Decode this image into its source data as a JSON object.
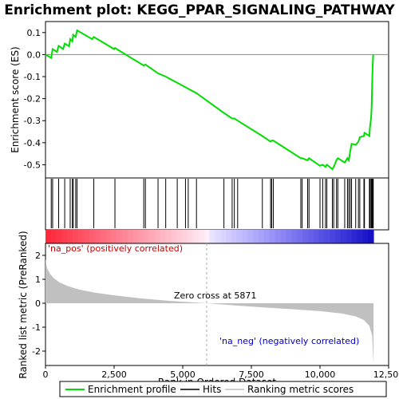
{
  "chart_data": {
    "type": "line",
    "title": "Enrichment plot: KEGG_PPAR_SIGNALING_PATHWAY",
    "es_panel": {
      "ylabel": "Enrichment score (ES)",
      "ylim": [
        -0.56,
        0.15
      ],
      "yticks": [
        "0.1",
        "0.0",
        "-0.1",
        "-0.2",
        "-0.3",
        "-0.4",
        "-0.5"
      ],
      "ytick_values": [
        0.1,
        0.0,
        -0.1,
        -0.2,
        -0.3,
        -0.4,
        -0.5
      ],
      "line_color": "#00dd00",
      "points": [
        [
          0,
          0.0
        ],
        [
          210,
          -0.015
        ],
        [
          260,
          0.025
        ],
        [
          420,
          0.012
        ],
        [
          480,
          0.04
        ],
        [
          640,
          0.025
        ],
        [
          700,
          0.05
        ],
        [
          860,
          0.038
        ],
        [
          900,
          0.07
        ],
        [
          980,
          0.06
        ],
        [
          1010,
          0.09
        ],
        [
          1100,
          0.08
        ],
        [
          1150,
          0.11
        ],
        [
          1700,
          0.07
        ],
        [
          1760,
          0.08
        ],
        [
          2500,
          0.025
        ],
        [
          2530,
          0.03
        ],
        [
          3580,
          -0.05
        ],
        [
          3640,
          -0.045
        ],
        [
          4100,
          -0.085
        ],
        [
          4380,
          -0.1
        ],
        [
          4800,
          -0.128
        ],
        [
          5100,
          -0.148
        ],
        [
          5200,
          -0.155
        ],
        [
          5500,
          -0.175
        ],
        [
          6500,
          -0.265
        ],
        [
          6800,
          -0.29
        ],
        [
          6880,
          -0.29
        ],
        [
          7000,
          -0.3
        ],
        [
          7900,
          -0.37
        ],
        [
          8200,
          -0.395
        ],
        [
          8240,
          -0.39
        ],
        [
          8300,
          -0.39
        ],
        [
          9300,
          -0.47
        ],
        [
          9350,
          -0.47
        ],
        [
          9550,
          -0.48
        ],
        [
          9600,
          -0.47
        ],
        [
          10000,
          -0.505
        ],
        [
          10100,
          -0.5
        ],
        [
          10200,
          -0.51
        ],
        [
          10250,
          -0.5
        ],
        [
          10450,
          -0.52
        ],
        [
          10500,
          -0.51
        ],
        [
          10600,
          -0.48
        ],
        [
          10650,
          -0.47
        ],
        [
          10900,
          -0.49
        ],
        [
          11000,
          -0.47
        ],
        [
          11050,
          -0.48
        ],
        [
          11100,
          -0.44
        ],
        [
          11150,
          -0.405
        ],
        [
          11300,
          -0.41
        ],
        [
          11400,
          -0.395
        ],
        [
          11450,
          -0.375
        ],
        [
          11600,
          -0.37
        ],
        [
          11620,
          -0.355
        ],
        [
          11800,
          -0.37
        ],
        [
          11820,
          -0.33
        ],
        [
          11860,
          -0.29
        ],
        [
          11880,
          -0.24
        ],
        [
          11900,
          -0.13
        ],
        [
          11920,
          -0.05
        ],
        [
          11940,
          0.0
        ]
      ]
    },
    "hits": [
      210,
      260,
      480,
      700,
      900,
      980,
      1010,
      1100,
      1150,
      1760,
      2530,
      3580,
      3640,
      4100,
      4380,
      4800,
      5100,
      5200,
      5500,
      6500,
      6800,
      6880,
      7000,
      7900,
      8200,
      8240,
      8300,
      9300,
      9350,
      9550,
      9600,
      10000,
      10100,
      10200,
      10250,
      10450,
      10500,
      10600,
      10650,
      10900,
      11000,
      11050,
      11100,
      11150,
      11300,
      11400,
      11450,
      11600,
      11620,
      11800,
      11820,
      11860,
      11880,
      11900,
      11920,
      11940
    ],
    "metric_panel": {
      "ylabel": "Ranked list metric (PreRanked)",
      "ylim": [
        -2.6,
        2.5
      ],
      "yticks": [
        "2",
        "1",
        "0",
        "-1",
        "-2"
      ],
      "ytick_values": [
        2,
        1,
        0,
        -1,
        -2
      ],
      "fill_color": "#c0c0c0",
      "zero_cross_label": "Zero cross at 5871",
      "zero_cross": 5871,
      "pos_label": "'na_pos' (positively correlated)",
      "neg_label": "'na_neg' (negatively correlated)",
      "curve": [
        [
          0,
          1.85
        ],
        [
          50,
          1.5
        ],
        [
          150,
          1.25
        ],
        [
          300,
          1.05
        ],
        [
          500,
          0.88
        ],
        [
          800,
          0.72
        ],
        [
          1200,
          0.58
        ],
        [
          1800,
          0.44
        ],
        [
          2500,
          0.33
        ],
        [
          3500,
          0.2
        ],
        [
          4500,
          0.1
        ],
        [
          5871,
          0.0
        ],
        [
          7000,
          -0.1
        ],
        [
          8000,
          -0.18
        ],
        [
          9000,
          -0.25
        ],
        [
          10000,
          -0.33
        ],
        [
          10800,
          -0.43
        ],
        [
          11300,
          -0.55
        ],
        [
          11600,
          -0.7
        ],
        [
          11800,
          -0.95
        ],
        [
          11900,
          -1.35
        ],
        [
          11950,
          -2.6
        ]
      ]
    },
    "xlabel": "Rank in Ordered Dataset",
    "xlim": [
      0,
      12500
    ],
    "xticks": [
      "0",
      "2,500",
      "5,000",
      "7,500",
      "10,000",
      "12,500"
    ],
    "xtick_values": [
      0,
      2500,
      5000,
      7500,
      10000,
      12500
    ],
    "n_genes": 11950,
    "legend": [
      "Enrichment profile",
      "Hits",
      "Ranking metric scores"
    ]
  }
}
